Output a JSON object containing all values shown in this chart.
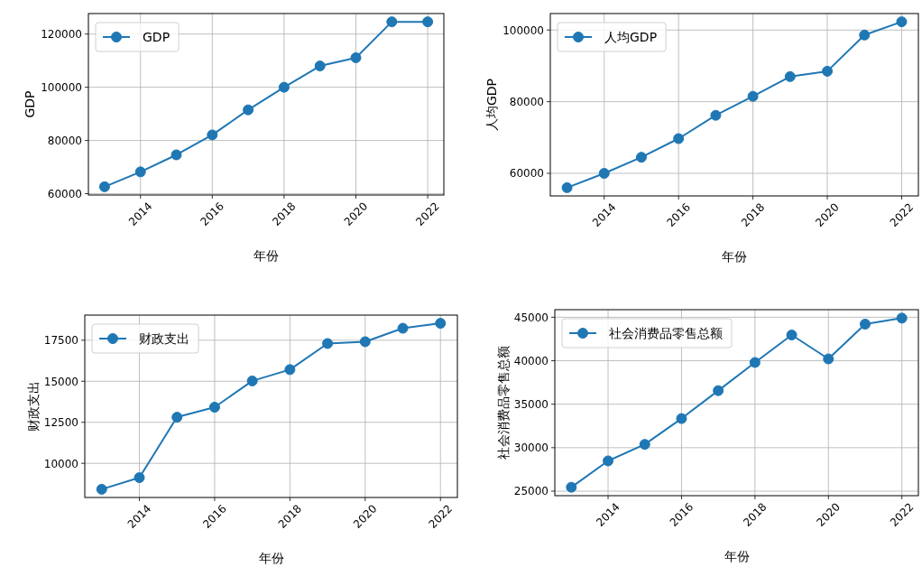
{
  "chart_data": [
    {
      "type": "line",
      "x": [
        2013,
        2014,
        2015,
        2016,
        2017,
        2018,
        2019,
        2020,
        2021,
        2022
      ],
      "xlabel": "年份",
      "ylabel": "GDP",
      "series": [
        {
          "name": "GDP",
          "color": "#1f77b4",
          "values": [
            62600,
            68200,
            74600,
            82100,
            91500,
            100000,
            108000,
            111100,
            124600,
            124600
          ]
        }
      ],
      "xlim": [
        2012.55,
        2022.45
      ],
      "xticks": [
        2014,
        2016,
        2018,
        2020,
        2022
      ],
      "ylim": [
        59500,
        127700
      ],
      "yticks": [
        60000,
        80000,
        100000,
        120000
      ],
      "grid": true,
      "legend": "top left",
      "marker": "circle"
    },
    {
      "type": "line",
      "x": [
        2013,
        2014,
        2015,
        2016,
        2017,
        2018,
        2019,
        2020,
        2021,
        2022
      ],
      "xlabel": "年份",
      "ylabel": "人均GDP",
      "series": [
        {
          "name": "人均GDP",
          "color": "#1f77b4",
          "values": [
            56000,
            60000,
            64500,
            69700,
            76200,
            81500,
            87000,
            88500,
            98600,
            102300
          ]
        }
      ],
      "xlim": [
        2012.55,
        2022.45
      ],
      "xticks": [
        2014,
        2016,
        2018,
        2020,
        2022
      ],
      "ylim": [
        53700,
        104600
      ],
      "yticks": [
        60000,
        80000,
        100000
      ],
      "grid": true,
      "legend": "top left",
      "marker": "circle"
    },
    {
      "type": "line",
      "x": [
        2013,
        2014,
        2015,
        2016,
        2017,
        2018,
        2019,
        2020,
        2021,
        2022
      ],
      "xlabel": "年份",
      "ylabel": "财政支出",
      "series": [
        {
          "name": "财政支出",
          "color": "#1f77b4",
          "values": [
            8420,
            9130,
            12810,
            13420,
            15020,
            15710,
            17300,
            17410,
            18230,
            18530
          ]
        }
      ],
      "xlim": [
        2012.55,
        2022.45
      ],
      "xticks": [
        2014,
        2016,
        2018,
        2020,
        2022
      ],
      "ylim": [
        7920,
        19030
      ],
      "yticks": [
        10000,
        12500,
        15000,
        17500
      ],
      "grid": true,
      "legend": "top left",
      "marker": "circle"
    },
    {
      "type": "line",
      "x": [
        2013,
        2014,
        2015,
        2016,
        2017,
        2018,
        2019,
        2020,
        2021,
        2022
      ],
      "xlabel": "年份",
      "ylabel": "社会消费品零售总额",
      "series": [
        {
          "name": "社会消费品零售总额",
          "color": "#1f77b4",
          "values": [
            25450,
            28480,
            30380,
            33350,
            36560,
            39800,
            42960,
            40210,
            44210,
            44900
          ]
        }
      ],
      "xlim": [
        2012.55,
        2022.45
      ],
      "xticks": [
        2014,
        2016,
        2018,
        2020,
        2022
      ],
      "ylim": [
        24480,
        45870
      ],
      "yticks": [
        25000,
        30000,
        35000,
        40000,
        45000
      ],
      "grid": true,
      "legend": "top left",
      "marker": "circle"
    }
  ]
}
